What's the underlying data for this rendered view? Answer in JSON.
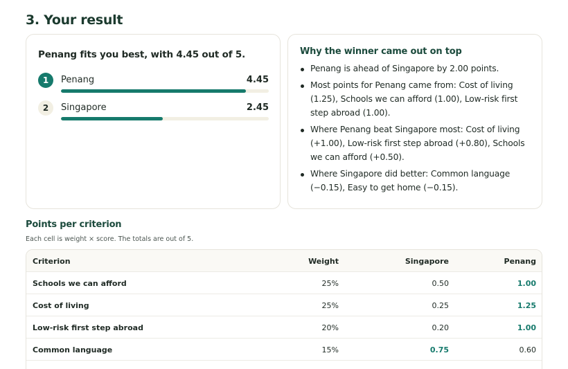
{
  "section": {
    "title": "3. Your result"
  },
  "result": {
    "summary": "Penang fits you best, with 4.45 out of 5.",
    "ranking": [
      {
        "rank": "1",
        "name": "Penang",
        "score": "4.45",
        "fraction": 0.89
      },
      {
        "rank": "2",
        "name": "Singapore",
        "score": "2.45",
        "fraction": 0.49
      }
    ]
  },
  "why": {
    "title": "Why the winner came out on top",
    "bullets": [
      "Penang is ahead of Singapore by 2.00 points.",
      "Most points for Penang came from: Cost of living (1.25), Schools we can afford (1.00), Low-risk first step abroad (1.00).",
      "Where Penang beat Singapore most: Cost of living (+1.00), Low-risk first step abroad (+0.80), Schools we can afford (+0.50).",
      "Where Singapore did better: Common language (−0.15), Easy to get home (−0.15)."
    ]
  },
  "points": {
    "title": "Points per criterion",
    "note": "Each cell is weight × score. The totals are out of 5.",
    "headers": {
      "criterion": "Criterion",
      "weight": "Weight",
      "singapore": "Singapore",
      "penang": "Penang"
    },
    "rows": [
      {
        "criterion": "Schools we can afford",
        "weight": "25%",
        "singapore": "0.50",
        "penang": "1.00",
        "winner": "penang"
      },
      {
        "criterion": "Cost of living",
        "weight": "25%",
        "singapore": "0.25",
        "penang": "1.25",
        "winner": "penang"
      },
      {
        "criterion": "Low-risk first step abroad",
        "weight": "20%",
        "singapore": "0.20",
        "penang": "1.00",
        "winner": "penang"
      },
      {
        "criterion": "Common language",
        "weight": "15%",
        "singapore": "0.75",
        "penang": "0.60",
        "winner": "singapore"
      }
    ]
  },
  "colors": {
    "accent": "#167a6c",
    "track": "#f2efe3",
    "heading": "#1b4a3c"
  }
}
